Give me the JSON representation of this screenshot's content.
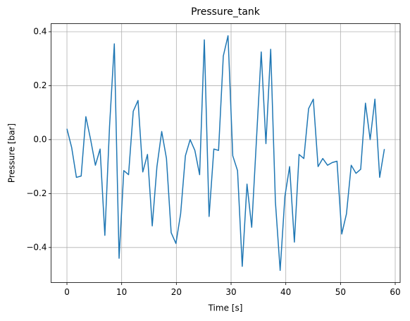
{
  "chart_data": {
    "type": "line",
    "title": "Pressure_tank",
    "xlabel": "Time [s]",
    "ylabel": "Pressure [bar]",
    "x": [
      0,
      0.87,
      1.73,
      2.6,
      3.46,
      4.33,
      5.2,
      6.06,
      6.93,
      7.79,
      8.66,
      9.53,
      10.39,
      11.26,
      12.12,
      12.99,
      13.86,
      14.72,
      15.59,
      16.45,
      17.32,
      18.19,
      19.05,
      19.92,
      20.78,
      21.65,
      22.52,
      23.38,
      24.25,
      25.11,
      25.98,
      26.85,
      27.71,
      28.58,
      29.44,
      30.31,
      31.18,
      32.04,
      32.91,
      33.77,
      34.64,
      35.51,
      36.37,
      37.24,
      38.1,
      38.97,
      39.84,
      40.7,
      41.57,
      42.43,
      43.3,
      44.17,
      45.03,
      45.9,
      46.76,
      47.63,
      48.5,
      49.36,
      50.23,
      51.09,
      51.96,
      52.83,
      53.69,
      54.56,
      55.42,
      56.29,
      57.16,
      58.02
    ],
    "series": [
      {
        "name": "Pressure_tank",
        "color": "#1f77b4",
        "values": [
          0.04,
          -0.03,
          -0.14,
          -0.135,
          0.085,
          0.0,
          -0.095,
          -0.035,
          -0.355,
          0.05,
          0.355,
          -0.44,
          -0.115,
          -0.13,
          0.105,
          0.145,
          -0.12,
          -0.055,
          -0.32,
          -0.1,
          0.03,
          -0.07,
          -0.345,
          -0.385,
          -0.275,
          -0.06,
          0.0,
          -0.04,
          -0.13,
          0.37,
          -0.285,
          -0.035,
          -0.04,
          0.31,
          0.385,
          -0.06,
          -0.115,
          -0.47,
          -0.165,
          -0.325,
          0.0,
          0.325,
          -0.015,
          0.335,
          -0.23,
          -0.485,
          -0.21,
          -0.1,
          -0.38,
          -0.055,
          -0.07,
          0.115,
          0.15,
          -0.1,
          -0.07,
          -0.095,
          -0.085,
          -0.08,
          -0.35,
          -0.275,
          -0.095,
          -0.125,
          -0.11,
          0.135,
          0.0,
          0.15,
          -0.14,
          -0.035
        ]
      }
    ],
    "xlim": [
      -2.9,
      60.9
    ],
    "ylim": [
      -0.53,
      0.43
    ],
    "xticks": [
      0,
      10,
      20,
      30,
      40,
      50,
      60
    ],
    "yticks": [
      {
        "value": -0.4,
        "label": "−0.4"
      },
      {
        "value": -0.2,
        "label": "−0.2"
      },
      {
        "value": 0.0,
        "label": "0.0"
      },
      {
        "value": 0.2,
        "label": "0.2"
      },
      {
        "value": 0.4,
        "label": "0.4"
      }
    ],
    "grid": true
  }
}
